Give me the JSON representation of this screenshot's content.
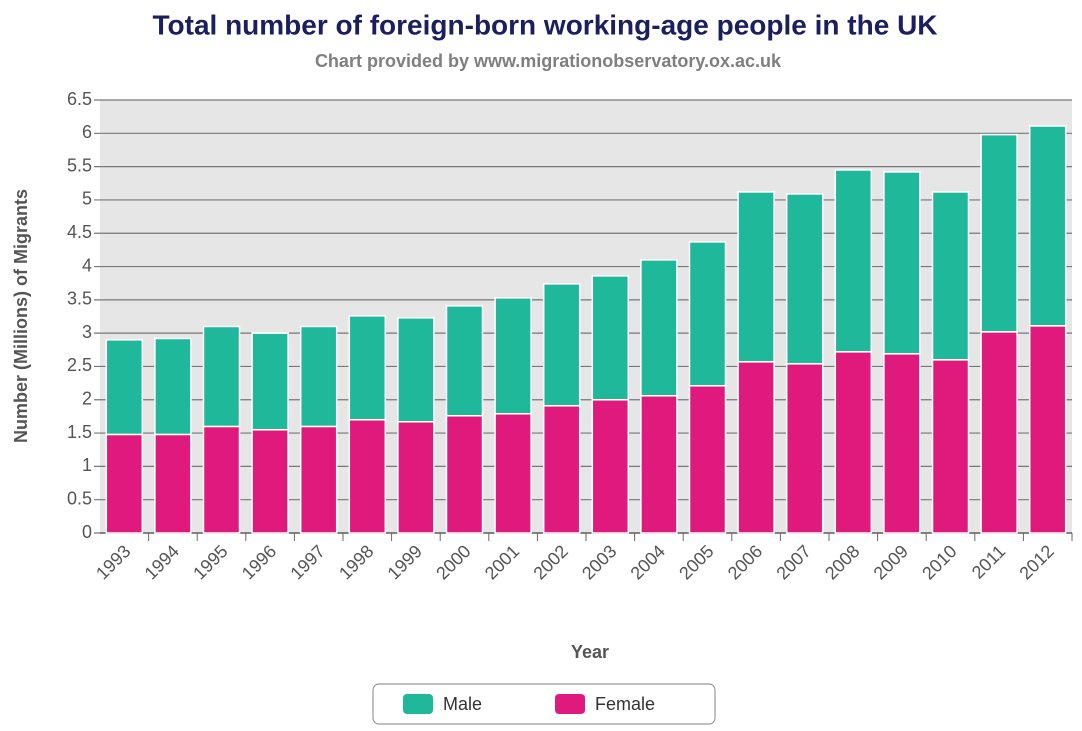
{
  "chart_data": {
    "type": "stacked_bar",
    "title": "Total number of foreign-born working-age people in the UK",
    "subtitle": "Chart provided by www.migrationobservatory.ox.ac.uk",
    "x_label": "Year",
    "y_label": "Number (Millions) of Migrants",
    "categories": [
      "1993",
      "1994",
      "1995",
      "1996",
      "1997",
      "1998",
      "1999",
      "2000",
      "2001",
      "2002",
      "2003",
      "2004",
      "2005",
      "2006",
      "2007",
      "2008",
      "2009",
      "2010",
      "2011",
      "2012"
    ],
    "series": [
      {
        "name": "Male",
        "color": "#1fb89a",
        "values": [
          1.42,
          1.44,
          1.5,
          1.45,
          1.5,
          1.56,
          1.56,
          1.65,
          1.74,
          1.83,
          1.86,
          2.04,
          2.16,
          2.55,
          2.55,
          2.73,
          2.73,
          2.52,
          2.96,
          3.0
        ]
      },
      {
        "name": "Female",
        "color": "#e0197d",
        "values": [
          1.48,
          1.48,
          1.6,
          1.55,
          1.6,
          1.7,
          1.67,
          1.76,
          1.79,
          1.91,
          2.0,
          2.06,
          2.21,
          2.57,
          2.54,
          2.72,
          2.69,
          2.6,
          3.02,
          3.11
        ]
      }
    ],
    "stack_order": [
      "Female",
      "Male"
    ],
    "ylim": [
      0,
      6.5
    ],
    "yticks": [
      0,
      0.5,
      1,
      1.5,
      2,
      2.5,
      3,
      3.5,
      4,
      4.5,
      5,
      5.5,
      6,
      6.5
    ],
    "grid": true,
    "legend": "bottom"
  }
}
